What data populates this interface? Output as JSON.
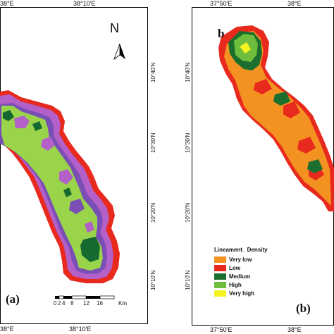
{
  "panel_a": {
    "label": "(a)",
    "top_ticks": [
      "38°E",
      "38°10'E"
    ],
    "bottom_ticks": [
      "38°E",
      "38°10'E"
    ],
    "right_ticks": [
      "10°40'N",
      "10°30'N",
      "10°20'N",
      "10°10'N"
    ],
    "north_letter": "N",
    "scale_numbers": [
      "0",
      "2",
      "4",
      "8",
      "12",
      "16"
    ],
    "scale_unit": "Km",
    "class_colors": {
      "outer": "#e8291d",
      "ring2": "#b360c9",
      "ring3": "#7a4fb5",
      "fill": "#99d44a",
      "core": "#156a30"
    }
  },
  "panel_b": {
    "label": "b",
    "label_bottom": "(b)",
    "top_ticks": [
      "37°50'E",
      "38°E"
    ],
    "bottom_ticks": [
      "37°50'E",
      "38°E"
    ],
    "left_ticks": [
      "10°40'N",
      "10°30'N",
      "10°20'N",
      "10°10'N"
    ],
    "legend": {
      "title": "Lineament_ Density",
      "items": [
        {
          "label": "Very low",
          "color": "#f39221"
        },
        {
          "label": "Low",
          "color": "#e8291d"
        },
        {
          "label": "Medium",
          "color": "#1b6e2d"
        },
        {
          "label": "High",
          "color": "#6fbd3c"
        },
        {
          "label": "Very high",
          "color": "#f4f21f"
        }
      ]
    }
  }
}
